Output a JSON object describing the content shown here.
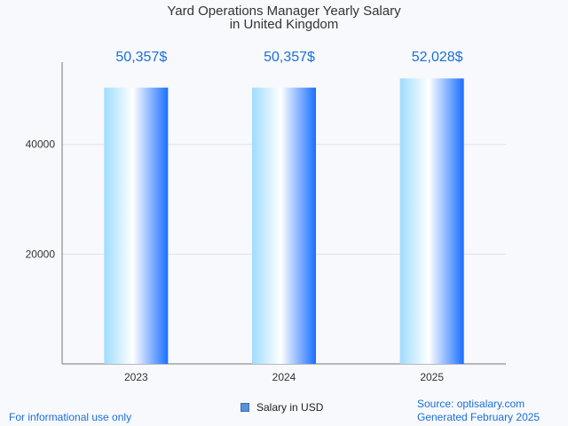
{
  "chart_data": {
    "type": "bar",
    "title_line1": "Yard Operations Manager Yearly Salary",
    "title_line2": "in United Kingdom",
    "categories": [
      "2023",
      "2024",
      "2025"
    ],
    "values": [
      50357,
      50357,
      52028
    ],
    "data_labels": [
      "50,357$",
      "50,357$",
      "52,028$"
    ],
    "y_ticks": [
      20000,
      40000
    ],
    "ylim": [
      0,
      55000
    ],
    "xlabel": "",
    "ylabel": "",
    "grid": true,
    "legend": "bottom-center",
    "series": [
      {
        "name": "Salary in USD",
        "values": [
          50357,
          50357,
          52028
        ]
      }
    ]
  },
  "legend": {
    "label": "Salary in USD"
  },
  "footer": {
    "disclaimer": "For informational use only",
    "source": "Source: optisalary.com",
    "generated": "Generated February 2025"
  },
  "colors": {
    "bar_light": "#9fdcff",
    "bar_mid": "#ffffff",
    "bar_dark": "#1a6fff",
    "label": "#1a6fd8",
    "grid": "#e2e2e2",
    "axis": "#777777"
  }
}
